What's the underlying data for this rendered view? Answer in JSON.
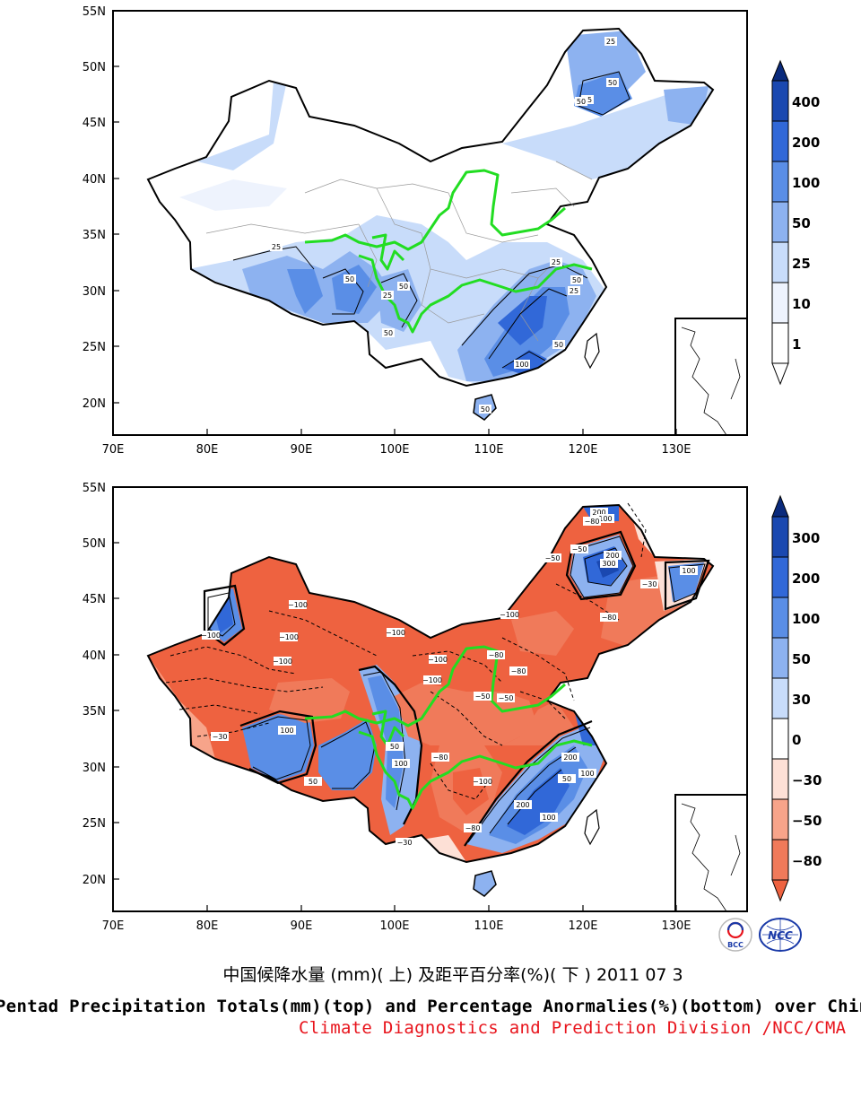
{
  "maps": [
    {
      "id": "totals",
      "lat_labels": [
        "55N",
        "50N",
        "45N",
        "40N",
        "35N",
        "30N",
        "25N",
        "20N"
      ],
      "lon_labels": [
        "70E",
        "80E",
        "90E",
        "100E",
        "110E",
        "120E",
        "130E"
      ],
      "colorbar": {
        "labels": [
          "400",
          "200",
          "100",
          "50",
          "25",
          "10",
          "1"
        ],
        "colors": [
          "#0a2a7c",
          "#1a48b0",
          "#3168d8",
          "#5a8ee6",
          "#8db2f0",
          "#c8dcfa",
          "#ffffff"
        ]
      },
      "contour_labels": [
        "25",
        "50",
        "25",
        "50",
        "25",
        "50",
        "50",
        "25",
        "50",
        "50",
        "25",
        "50",
        "100",
        "50",
        "25"
      ]
    },
    {
      "id": "anomalies",
      "lat_labels": [
        "55N",
        "50N",
        "45N",
        "40N",
        "35N",
        "30N",
        "25N",
        "20N"
      ],
      "lon_labels": [
        "70E",
        "80E",
        "90E",
        "100E",
        "110E",
        "120E",
        "130E"
      ],
      "colorbar": {
        "labels": [
          "300",
          "200",
          "100",
          "50",
          "30",
          "0",
          "−30",
          "−50",
          "−80"
        ],
        "colors": [
          "#0a2a7c",
          "#1a48b0",
          "#3168d8",
          "#5a8ee6",
          "#8db2f0",
          "#c8dcfa",
          "#ffffff",
          "#fde0d6",
          "#f7a48a",
          "#f07a5a",
          "#ee6240"
        ]
      },
      "contour_labels": [
        "200",
        "100",
        "−80",
        "−50",
        "200",
        "300",
        "100",
        "−50",
        "−30",
        "−100",
        "−80",
        "−100",
        "−100",
        "−100",
        "−100",
        "−100",
        "−80",
        "−50",
        "−100",
        "−80",
        "−50",
        "−30",
        "100",
        "50",
        "100",
        "50",
        "−80",
        "−100",
        "−80",
        "200",
        "100",
        "50",
        "200",
        "100",
        "−30",
        "−100"
      ]
    }
  ],
  "logos": {
    "bcc": "BCC",
    "ncc": "NCC"
  },
  "titles": {
    "chinese": "中国候降水量 (mm)( 上) 及距平百分率(%)( 下 ) 2011 07 3",
    "english": "Pentad Precipitation Totals(mm)(top) and Percentage Anormalies(%)(bottom) over China",
    "credit": "Climate Diagnostics and Prediction Division /NCC/CMA"
  }
}
